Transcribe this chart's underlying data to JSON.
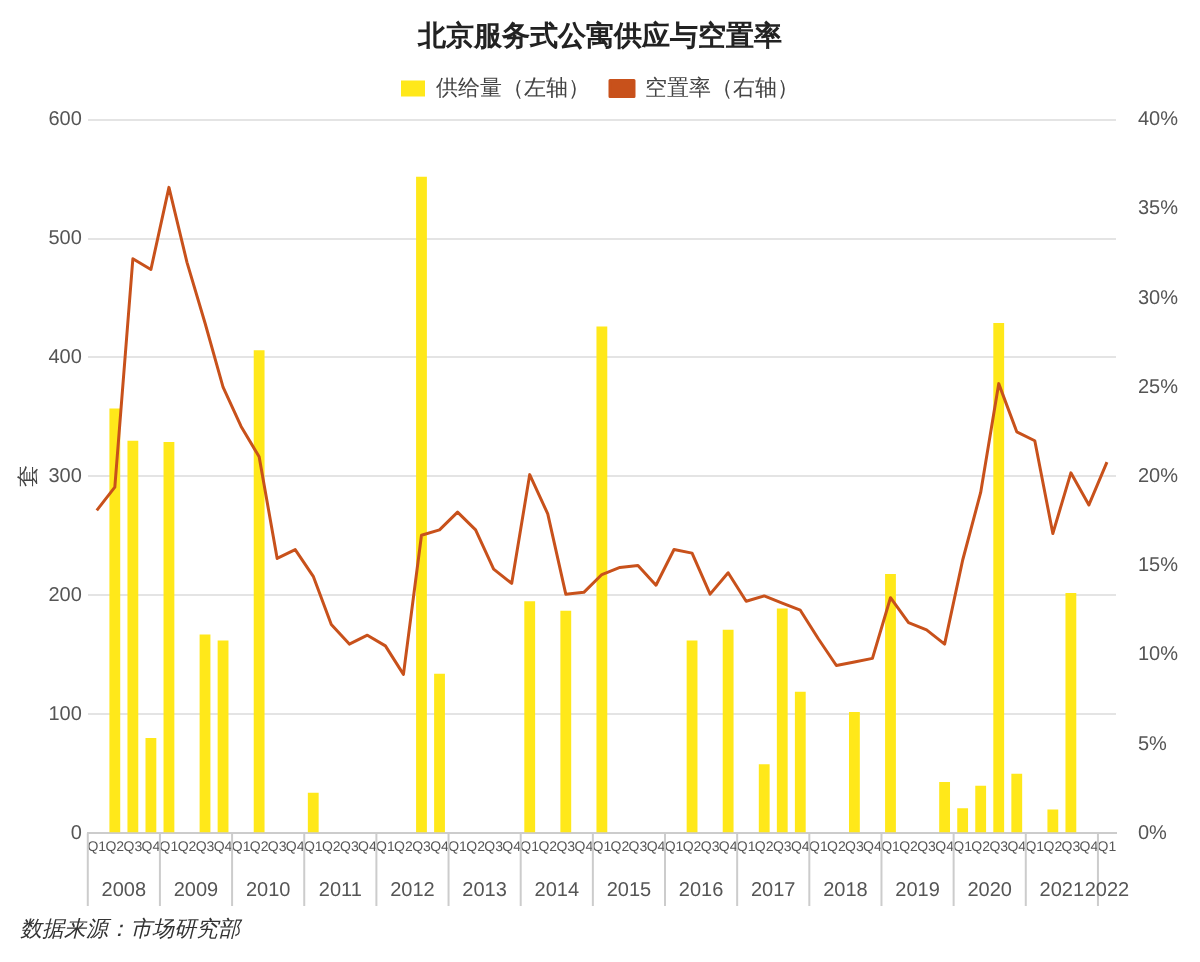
{
  "chart_data": {
    "type": "bar",
    "title": "北京服务式公寓供应与空置率",
    "ylabel": "套",
    "categories": [
      "Q1",
      "Q2",
      "Q3",
      "Q4",
      "Q1",
      "Q2",
      "Q3",
      "Q4",
      "Q1",
      "Q2",
      "Q3",
      "Q4",
      "Q1",
      "Q2",
      "Q3",
      "Q4",
      "Q1",
      "Q2",
      "Q3",
      "Q4",
      "Q1",
      "Q2",
      "Q3",
      "Q4",
      "Q1",
      "Q2",
      "Q3",
      "Q4",
      "Q1",
      "Q2",
      "Q3",
      "Q4",
      "Q1",
      "Q2",
      "Q3",
      "Q4",
      "Q1",
      "Q2",
      "Q3",
      "Q4",
      "Q1",
      "Q2",
      "Q3",
      "Q4",
      "Q1",
      "Q2",
      "Q3",
      "Q4",
      "Q1",
      "Q2",
      "Q3",
      "Q4",
      "Q1",
      "Q2",
      "Q3",
      "Q4",
      "Q1"
    ],
    "series": [
      {
        "name": "供给量（左轴）",
        "color": "#ffe81a",
        "values": [
          null,
          357,
          330,
          80,
          329,
          null,
          167,
          162,
          null,
          406,
          null,
          null,
          34,
          null,
          null,
          null,
          null,
          null,
          552,
          134,
          null,
          null,
          null,
          null,
          195,
          null,
          187,
          null,
          426,
          null,
          null,
          null,
          null,
          162,
          null,
          171,
          null,
          58,
          189,
          119,
          null,
          null,
          102,
          null,
          218,
          null,
          null,
          43,
          21,
          40,
          429,
          50,
          null,
          20,
          202,
          null,
          null
        ]
      },
      {
        "name": "空置率（右轴）",
        "type": "line",
        "axis": "y2",
        "color": "#c8511b",
        "values": [
          18.1,
          19.4,
          32.2,
          31.6,
          36.2,
          32.0,
          28.6,
          25.0,
          22.8,
          21.1,
          15.4,
          15.9,
          14.4,
          11.7,
          10.6,
          11.1,
          10.5,
          8.9,
          16.7,
          17.0,
          18.0,
          17.0,
          14.8,
          14.0,
          20.1,
          17.9,
          13.4,
          13.5,
          14.5,
          14.9,
          15.0,
          13.9,
          15.9,
          15.7,
          13.4,
          14.6,
          13.0,
          13.3,
          12.9,
          12.5,
          10.9,
          9.4,
          9.6,
          9.8,
          13.2,
          11.8,
          11.4,
          10.6,
          15.3,
          19.1,
          25.2,
          22.5,
          22.0,
          16.8,
          20.2,
          18.4,
          20.8
        ]
      }
    ],
    "ylim": [
      0,
      600
    ],
    "yticks": [
      0,
      100,
      200,
      300,
      400,
      500,
      600
    ],
    "y2lim": [
      0,
      40
    ],
    "y2ticks": [
      {
        "value": 0,
        "label": "0%"
      },
      {
        "value": 5,
        "label": "5%"
      },
      {
        "value": 10,
        "label": "10%"
      },
      {
        "value": 15,
        "label": "15%"
      },
      {
        "value": 20,
        "label": "20%"
      },
      {
        "value": 25,
        "label": "25%"
      },
      {
        "value": 30,
        "label": "30%"
      },
      {
        "value": 35,
        "label": "35%"
      },
      {
        "value": 40,
        "label": "40%"
      }
    ],
    "grid": "y",
    "legend": "top",
    "marker": "none",
    "line_style": "solid",
    "annotations": [
      "2008",
      "2009",
      "2010",
      "2011",
      "2012",
      "2013",
      "2014",
      "2015",
      "2016",
      "2017",
      "2018",
      "2019",
      "2020",
      "2021",
      "2022",
      "数据来源：市场研究部"
    ]
  }
}
